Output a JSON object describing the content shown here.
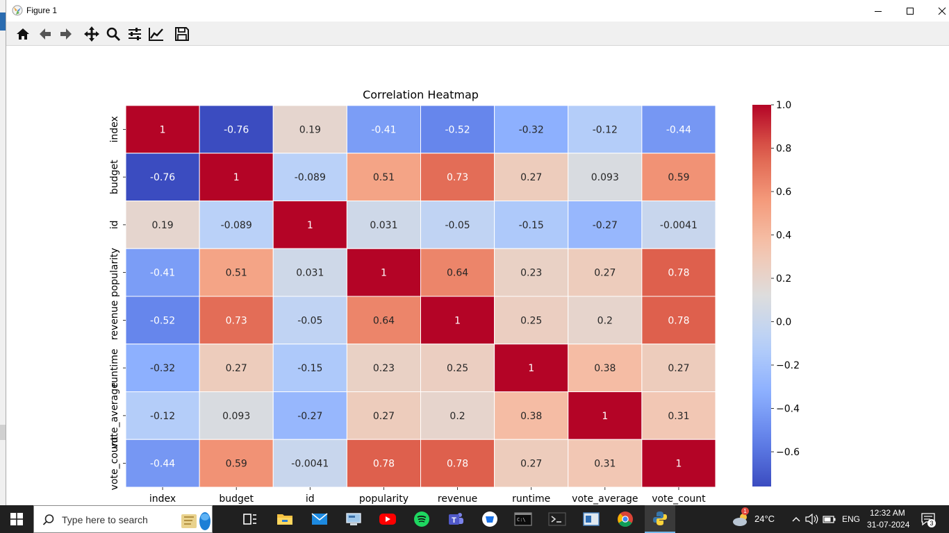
{
  "window": {
    "title": "Figure 1"
  },
  "toolbar": {
    "buttons": [
      {
        "name": "home-icon"
      },
      {
        "name": "back-arrow-icon"
      },
      {
        "name": "forward-arrow-icon"
      },
      {
        "name": "pan-icon"
      },
      {
        "name": "zoom-icon"
      },
      {
        "name": "subplots-config-icon"
      },
      {
        "name": "edit-axis-icon"
      },
      {
        "name": "save-icon"
      }
    ]
  },
  "chart_data": {
    "type": "heatmap",
    "title": "Correlation Heatmap",
    "labels": [
      "index",
      "budget",
      "id",
      "popularity",
      "revenue",
      "runtime",
      "vote_average",
      "vote_count"
    ],
    "matrix": [
      [
        "1",
        "-0.76",
        "0.19",
        "-0.41",
        "-0.52",
        "-0.32",
        "-0.12",
        "-0.44"
      ],
      [
        "-0.76",
        "1",
        "-0.089",
        "0.51",
        "0.73",
        "0.27",
        "0.093",
        "0.59"
      ],
      [
        "0.19",
        "-0.089",
        "1",
        "0.031",
        "-0.05",
        "-0.15",
        "-0.27",
        "-0.0041"
      ],
      [
        "-0.41",
        "0.51",
        "0.031",
        "1",
        "0.64",
        "0.23",
        "0.27",
        "0.78"
      ],
      [
        "-0.52",
        "0.73",
        "-0.05",
        "0.64",
        "1",
        "0.25",
        "0.2",
        "0.78"
      ],
      [
        "-0.32",
        "0.27",
        "-0.15",
        "0.23",
        "0.25",
        "1",
        "0.38",
        "0.27"
      ],
      [
        "-0.12",
        "0.093",
        "-0.27",
        "0.27",
        "0.2",
        "0.38",
        "1",
        "0.31"
      ],
      [
        "-0.44",
        "0.59",
        "-0.0041",
        "0.78",
        "0.78",
        "0.27",
        "0.31",
        "1"
      ]
    ],
    "colormap": "coolwarm",
    "vmin": -0.76,
    "vmax": 1.0,
    "colorbar_ticks": [
      "1.0",
      "0.8",
      "0.6",
      "0.4",
      "0.2",
      "0.0",
      "−0.2",
      "−0.4",
      "−0.6"
    ]
  },
  "taskbar": {
    "search_placeholder": "Type here to search",
    "weather": "24°C",
    "weather_badge": "1",
    "language": "ENG",
    "time": "12:32 AM",
    "date": "31-07-2024",
    "notification_count": "3"
  }
}
